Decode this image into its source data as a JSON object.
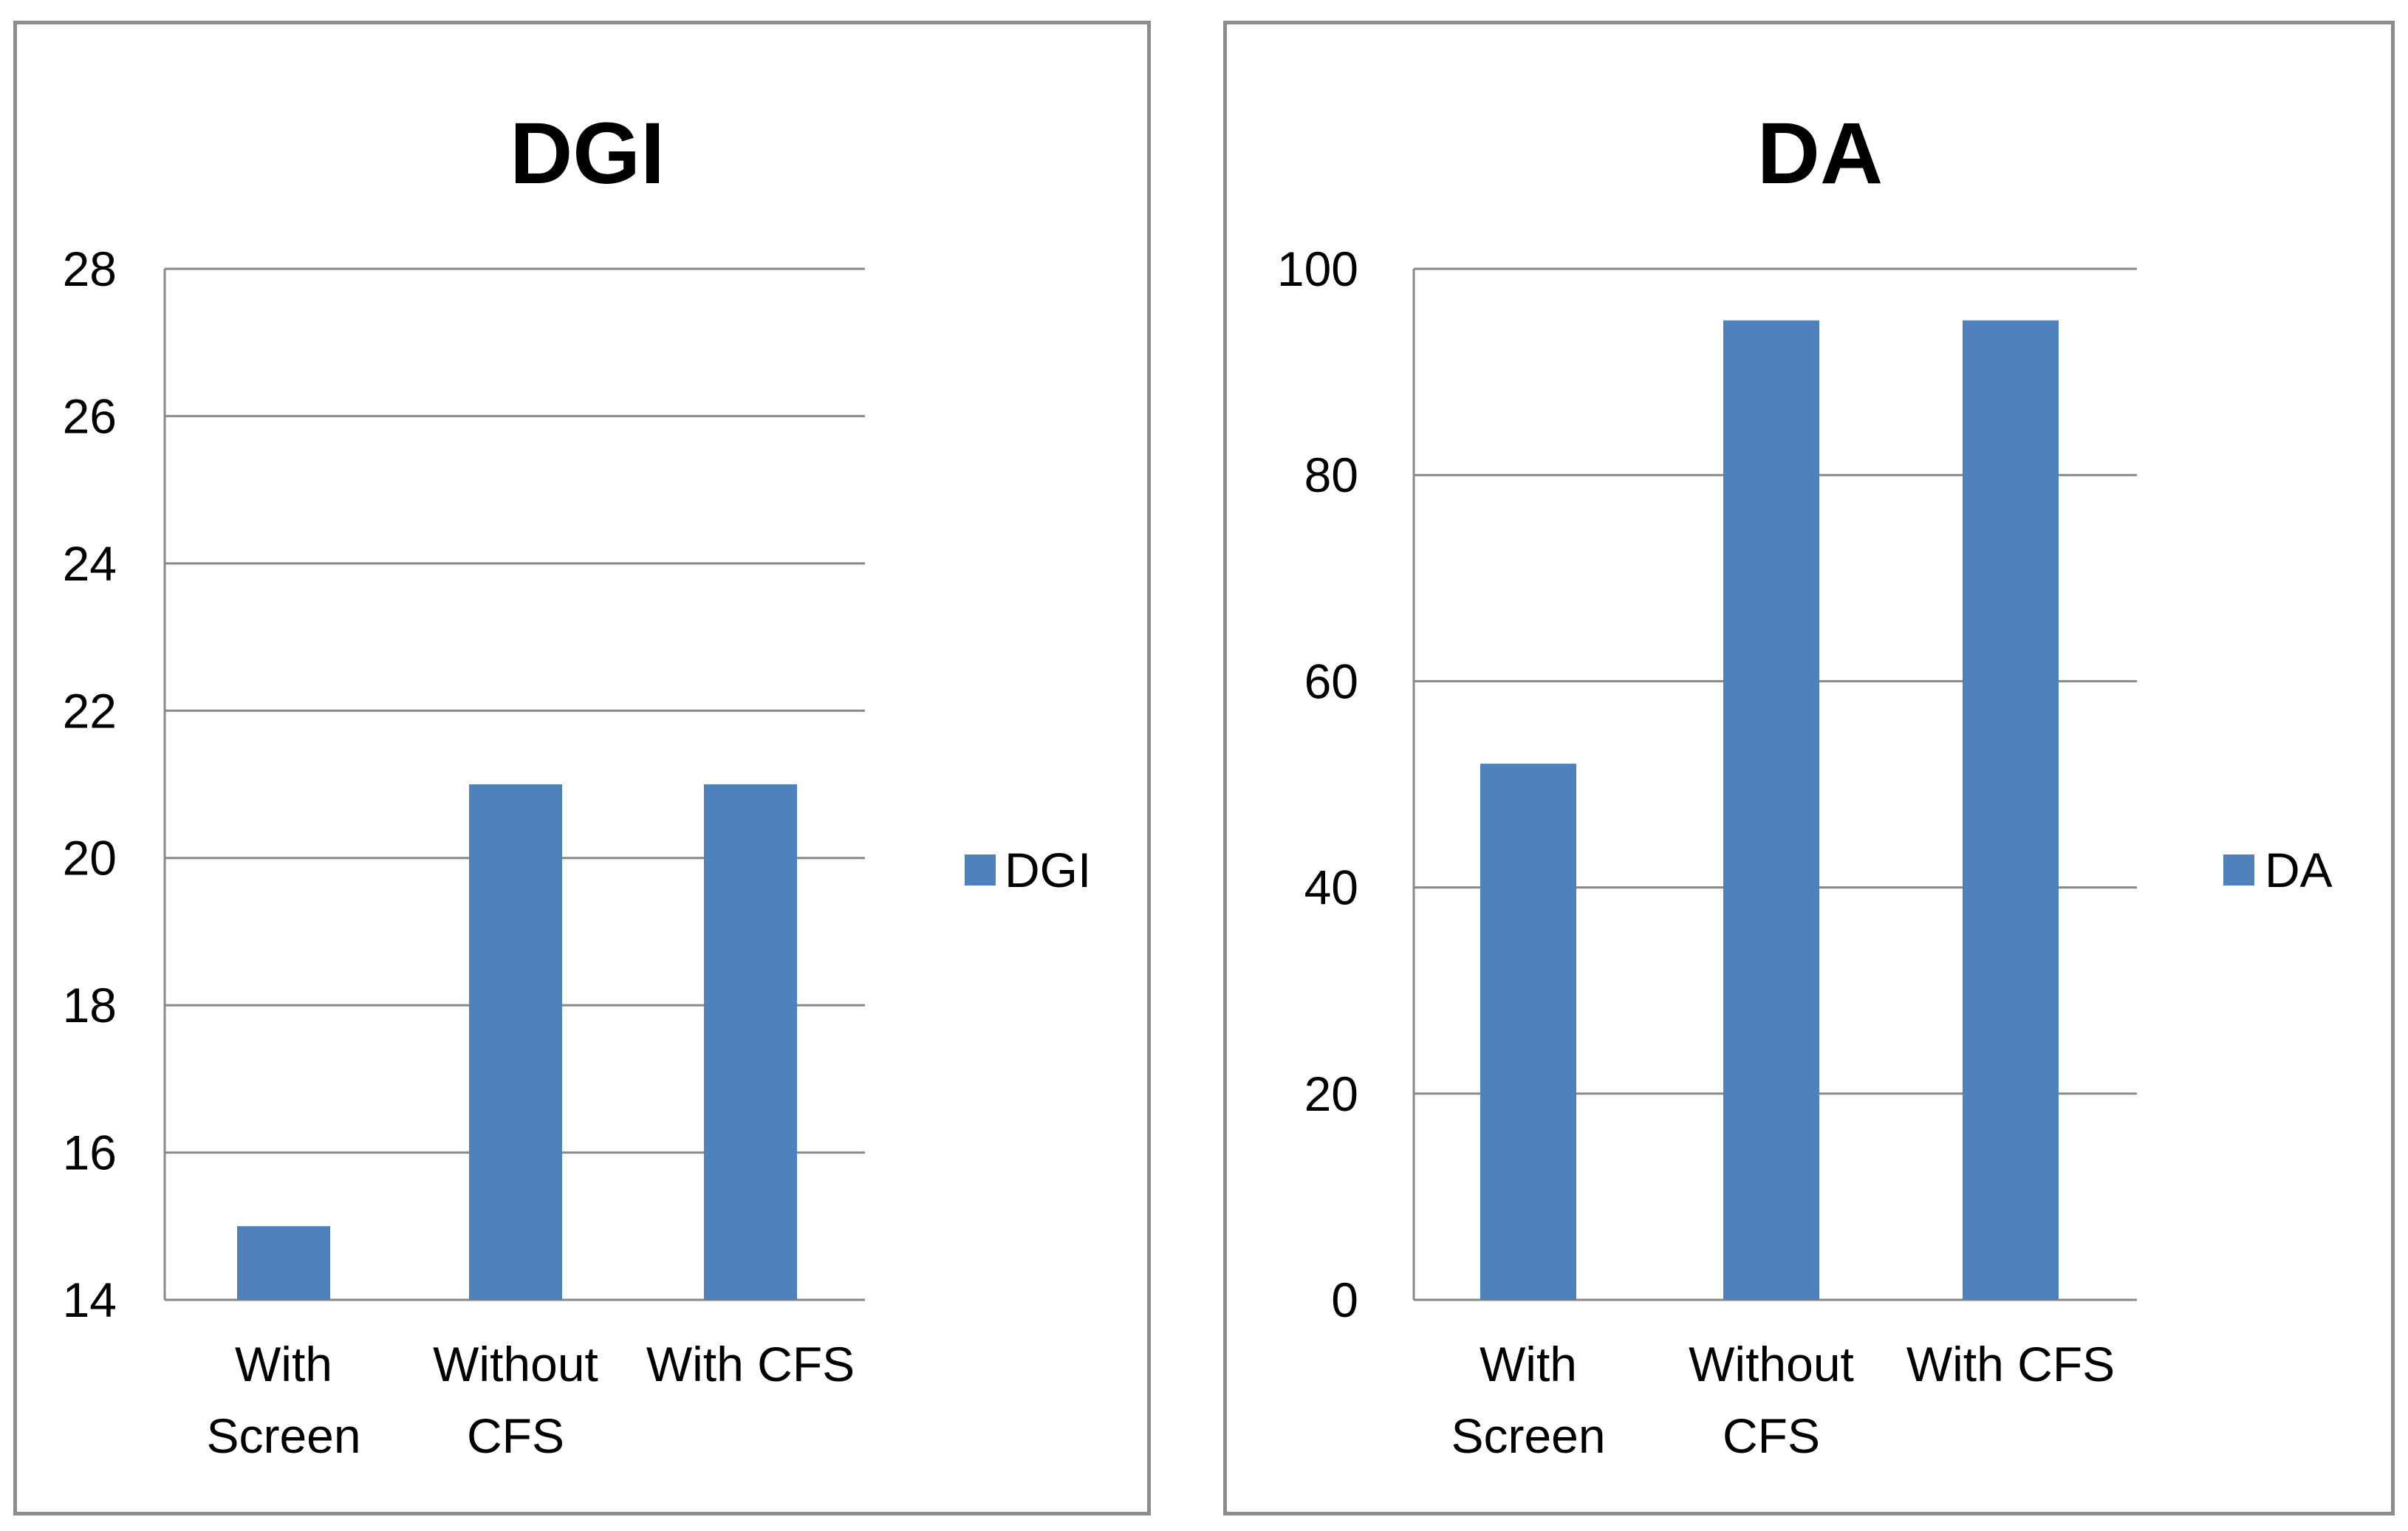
{
  "chart_data": [
    {
      "type": "bar",
      "title": "DGI",
      "categories": [
        [
          "With",
          "Screen"
        ],
        [
          "Without",
          "CFS"
        ],
        [
          "With CFS"
        ]
      ],
      "series": [
        {
          "name": "DGI",
          "values": [
            15,
            21,
            21
          ]
        }
      ],
      "ylim": [
        14,
        28
      ],
      "yticks": [
        14,
        16,
        18,
        20,
        22,
        24,
        26,
        28
      ],
      "grid": true,
      "legend": "right",
      "bar_color": "#4f81bd"
    },
    {
      "type": "bar",
      "title": "DA",
      "categories": [
        [
          "With",
          "Screen"
        ],
        [
          "Without",
          "CFS"
        ],
        [
          "With CFS"
        ]
      ],
      "series": [
        {
          "name": "DA",
          "values": [
            52,
            95,
            95
          ]
        }
      ],
      "ylim": [
        0,
        100
      ],
      "yticks": [
        0,
        20,
        40,
        60,
        80,
        100
      ],
      "grid": true,
      "legend": "right",
      "bar_color": "#4f81bd"
    }
  ]
}
